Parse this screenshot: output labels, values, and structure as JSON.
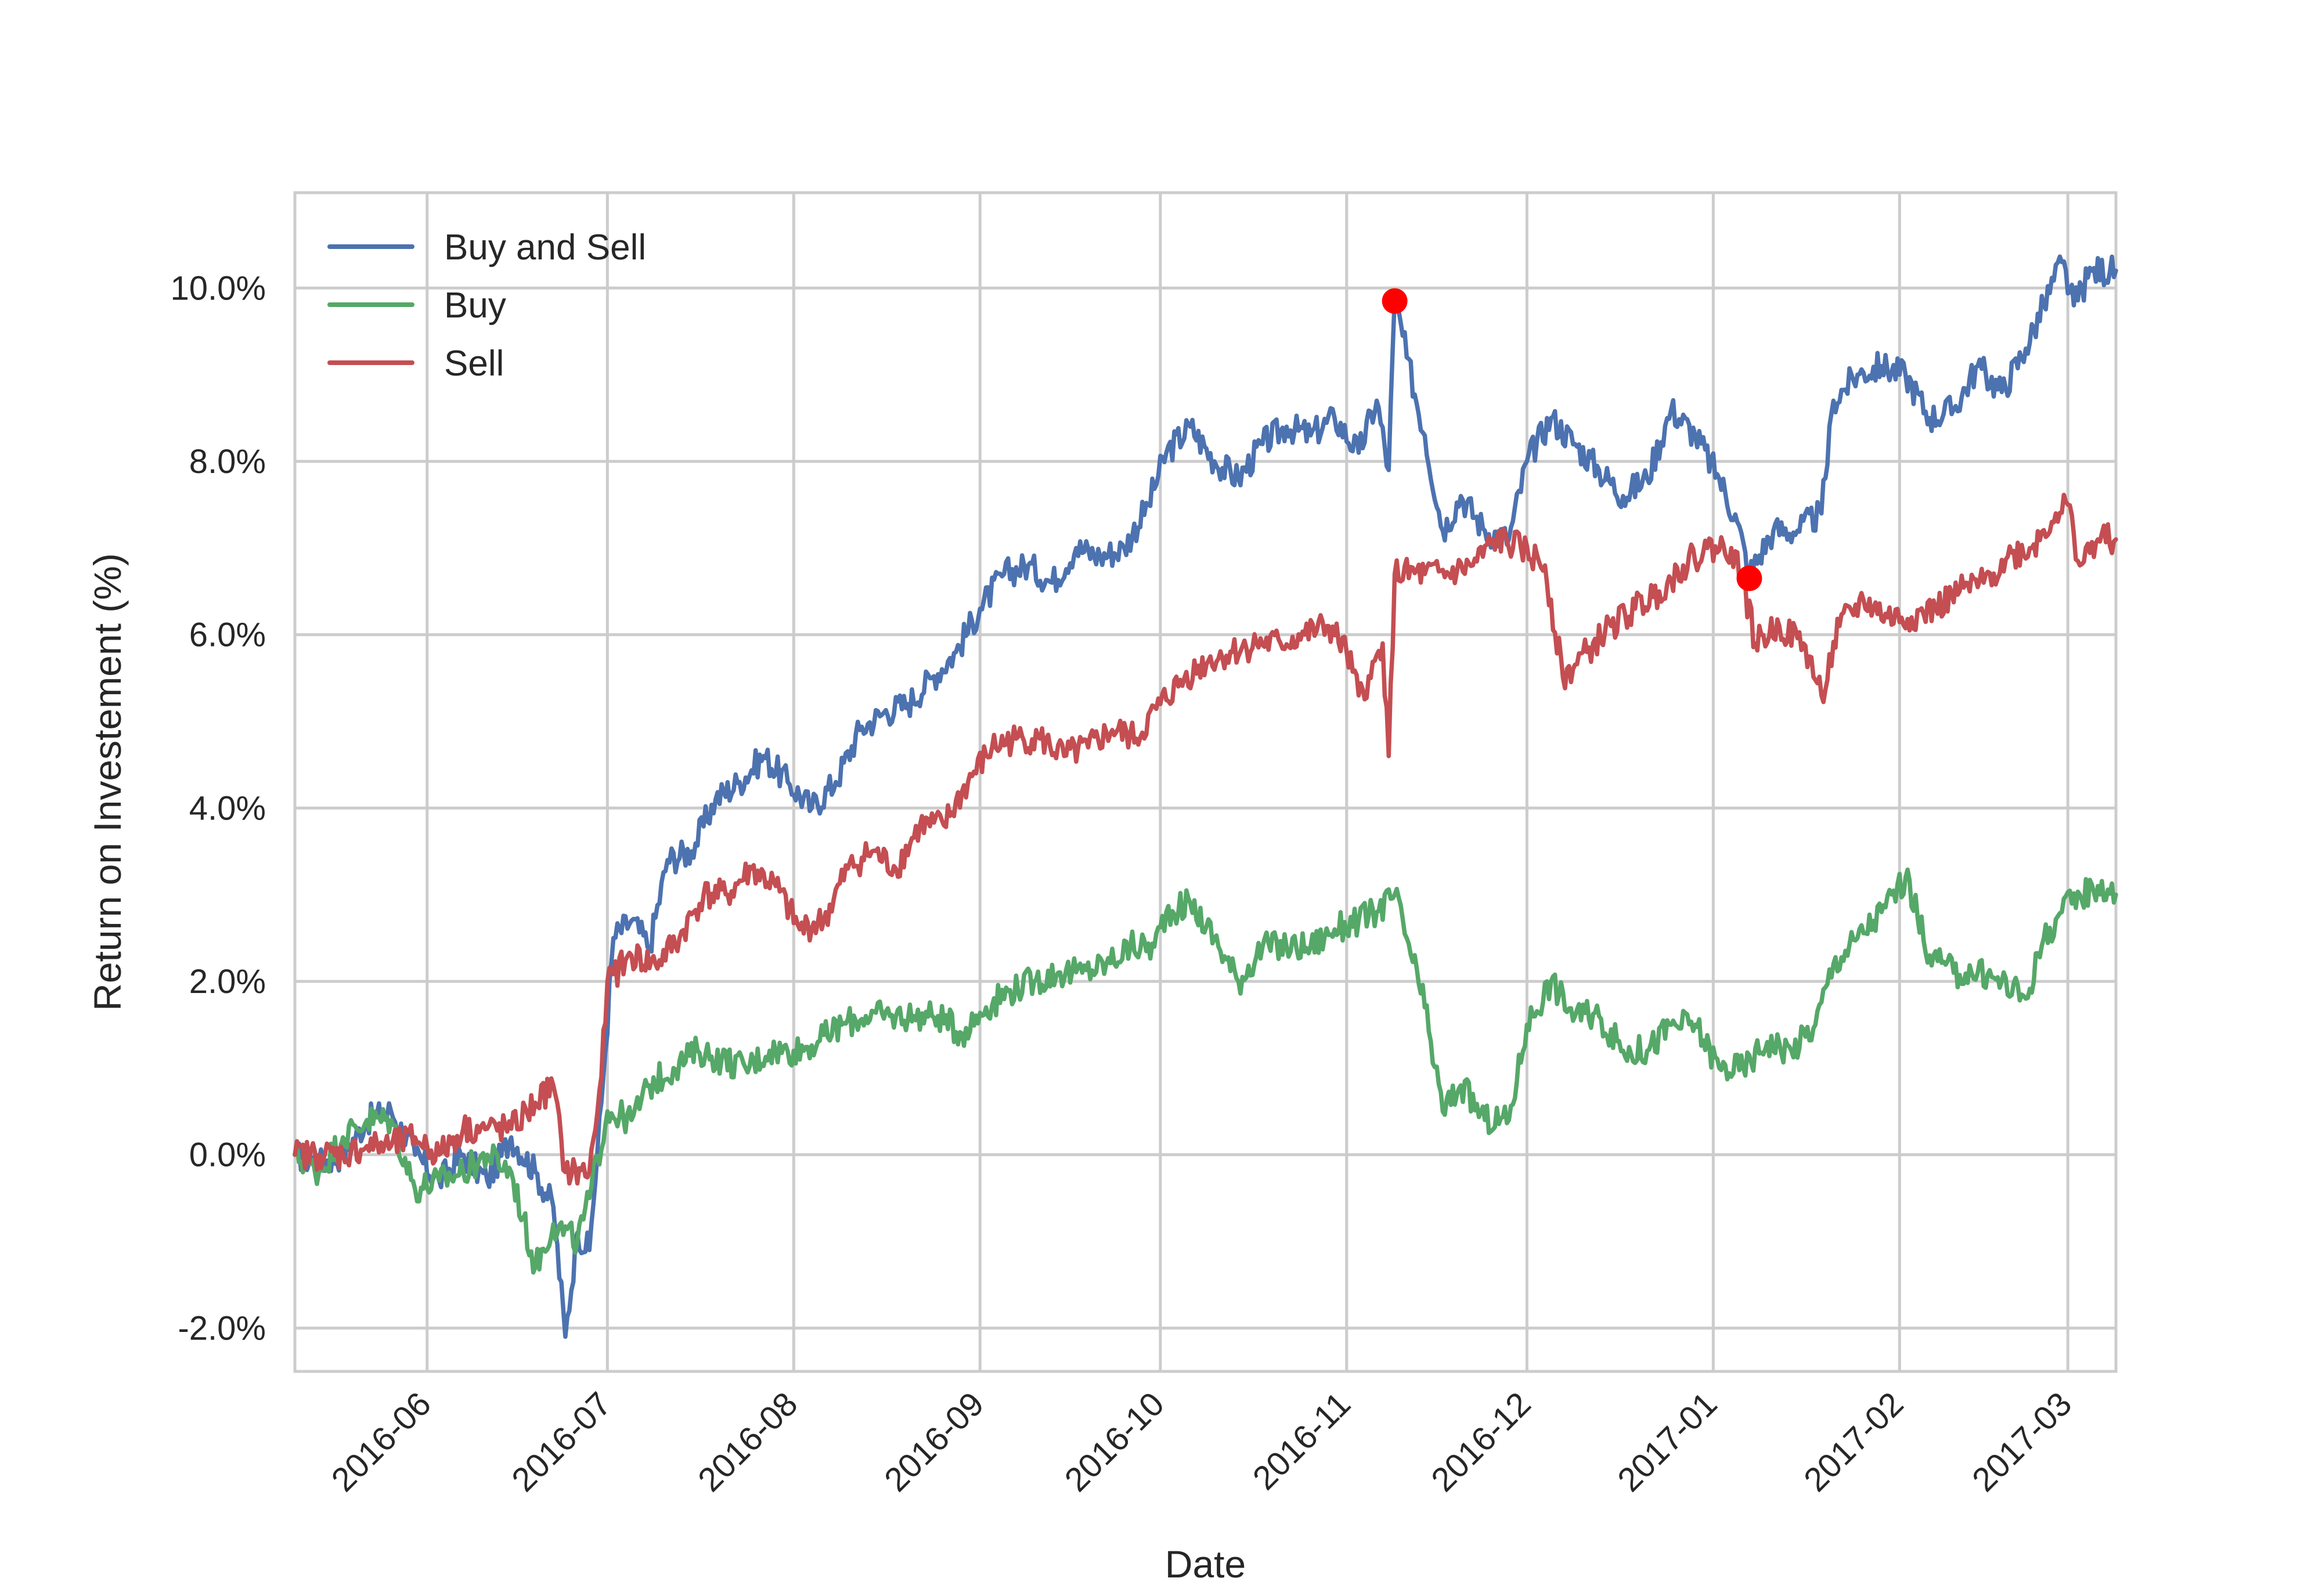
{
  "chart_data": {
    "type": "line",
    "xlabel": "Date",
    "ylabel": "Return on Investement (%)",
    "x_tick_labels": [
      "2016-06",
      "2016-07",
      "2016-08",
      "2016-09",
      "2016-10",
      "2016-11",
      "2016-12",
      "2017-01",
      "2017-02",
      "2017-03"
    ],
    "y_tick_labels": [
      "-2.0%",
      "0.0%",
      "2.0%",
      "4.0%",
      "6.0%",
      "8.0%",
      "10.0%"
    ],
    "y_ticks": [
      -2,
      0,
      2,
      4,
      6,
      8,
      10
    ],
    "ylim": [
      -2.5,
      11.1
    ],
    "xlim": [
      "2016-05-10",
      "2017-03-09"
    ],
    "grid": true,
    "legend_position": "upper-left",
    "series": [
      {
        "name": "Buy and Sell",
        "color": "#4c72b0",
        "points": [
          [
            "2016-05-10",
            0.0
          ],
          [
            "2016-05-14",
            -0.1
          ],
          [
            "2016-05-18",
            0.0
          ],
          [
            "2016-05-22",
            0.4
          ],
          [
            "2016-05-26",
            0.5
          ],
          [
            "2016-05-30",
            0.0
          ],
          [
            "2016-06-03",
            -0.3
          ],
          [
            "2016-06-07",
            0.0
          ],
          [
            "2016-06-11",
            -0.3
          ],
          [
            "2016-06-15",
            0.2
          ],
          [
            "2016-06-19",
            -0.2
          ],
          [
            "2016-06-22",
            -0.6
          ],
          [
            "2016-06-24",
            -2.1
          ],
          [
            "2016-06-26",
            -0.9
          ],
          [
            "2016-06-28",
            -1.1
          ],
          [
            "2016-06-30",
            0.6
          ],
          [
            "2016-07-02",
            2.5
          ],
          [
            "2016-07-05",
            2.7
          ],
          [
            "2016-07-08",
            2.4
          ],
          [
            "2016-07-11",
            3.4
          ],
          [
            "2016-07-15",
            3.5
          ],
          [
            "2016-07-19",
            4.1
          ],
          [
            "2016-07-23",
            4.3
          ],
          [
            "2016-07-27",
            4.6
          ],
          [
            "2016-07-31",
            4.3
          ],
          [
            "2016-08-04",
            4.0
          ],
          [
            "2016-08-08",
            4.3
          ],
          [
            "2016-08-12",
            4.9
          ],
          [
            "2016-08-16",
            5.1
          ],
          [
            "2016-08-20",
            5.2
          ],
          [
            "2016-08-24",
            5.5
          ],
          [
            "2016-08-28",
            5.8
          ],
          [
            "2016-09-01",
            6.3
          ],
          [
            "2016-09-05",
            6.7
          ],
          [
            "2016-09-09",
            6.8
          ],
          [
            "2016-09-13",
            6.6
          ],
          [
            "2016-09-17",
            7.0
          ],
          [
            "2016-09-21",
            6.9
          ],
          [
            "2016-09-25",
            7.0
          ],
          [
            "2016-09-29",
            7.5
          ],
          [
            "2016-10-02",
            8.1
          ],
          [
            "2016-10-06",
            8.4
          ],
          [
            "2016-10-10",
            8.0
          ],
          [
            "2016-10-14",
            7.8
          ],
          [
            "2016-10-18",
            8.2
          ],
          [
            "2016-10-22",
            8.4
          ],
          [
            "2016-10-26",
            8.3
          ],
          [
            "2016-10-30",
            8.5
          ],
          [
            "2016-11-03",
            8.1
          ],
          [
            "2016-11-06",
            8.7
          ],
          [
            "2016-11-08",
            7.9
          ],
          [
            "2016-11-09",
            9.9
          ],
          [
            "2016-11-11",
            9.2
          ],
          [
            "2016-11-14",
            8.3
          ],
          [
            "2016-11-17",
            7.2
          ],
          [
            "2016-11-20",
            7.6
          ],
          [
            "2016-11-24",
            7.2
          ],
          [
            "2016-11-28",
            7.1
          ],
          [
            "2016-12-01",
            8.0
          ],
          [
            "2016-12-05",
            8.5
          ],
          [
            "2016-12-09",
            8.2
          ],
          [
            "2016-12-13",
            7.9
          ],
          [
            "2016-12-17",
            7.6
          ],
          [
            "2016-12-21",
            7.8
          ],
          [
            "2016-12-25",
            8.6
          ],
          [
            "2016-12-29",
            8.3
          ],
          [
            "2017-01-02",
            7.8
          ],
          [
            "2017-01-05",
            7.3
          ],
          [
            "2017-01-07",
            6.7
          ],
          [
            "2017-01-11",
            7.2
          ],
          [
            "2017-01-15",
            7.2
          ],
          [
            "2017-01-19",
            7.4
          ],
          [
            "2017-01-21",
            8.7
          ],
          [
            "2017-01-25",
            9.0
          ],
          [
            "2017-01-29",
            9.1
          ],
          [
            "2017-02-02",
            9.0
          ],
          [
            "2017-02-06",
            8.5
          ],
          [
            "2017-02-10",
            8.6
          ],
          [
            "2017-02-14",
            9.1
          ],
          [
            "2017-02-18",
            8.8
          ],
          [
            "2017-02-22",
            9.3
          ],
          [
            "2017-02-25",
            9.8
          ],
          [
            "2017-02-28",
            10.3
          ],
          [
            "2017-03-02",
            9.8
          ],
          [
            "2017-03-05",
            10.2
          ],
          [
            "2017-03-09",
            10.2
          ]
        ]
      },
      {
        "name": "Buy",
        "color": "#55a868",
        "points": [
          [
            "2016-05-10",
            0.0
          ],
          [
            "2016-05-14",
            -0.2
          ],
          [
            "2016-05-18",
            0.2
          ],
          [
            "2016-05-22",
            0.4
          ],
          [
            "2016-05-26",
            0.4
          ],
          [
            "2016-05-30",
            -0.4
          ],
          [
            "2016-06-03",
            -0.3
          ],
          [
            "2016-06-07",
            -0.2
          ],
          [
            "2016-06-11",
            0.0
          ],
          [
            "2016-06-15",
            -0.2
          ],
          [
            "2016-06-19",
            -1.3
          ],
          [
            "2016-06-22",
            -0.8
          ],
          [
            "2016-06-26",
            -1.0
          ],
          [
            "2016-06-28",
            -0.5
          ],
          [
            "2016-07-01",
            0.5
          ],
          [
            "2016-07-05",
            0.4
          ],
          [
            "2016-07-08",
            0.8
          ],
          [
            "2016-07-12",
            1.0
          ],
          [
            "2016-07-16",
            1.2
          ],
          [
            "2016-07-20",
            1.1
          ],
          [
            "2016-07-24",
            1.0
          ],
          [
            "2016-07-28",
            1.2
          ],
          [
            "2016-08-01",
            1.2
          ],
          [
            "2016-08-05",
            1.3
          ],
          [
            "2016-08-09",
            1.5
          ],
          [
            "2016-08-13",
            1.6
          ],
          [
            "2016-08-17",
            1.6
          ],
          [
            "2016-08-21",
            1.6
          ],
          [
            "2016-08-25",
            1.6
          ],
          [
            "2016-08-29",
            1.4
          ],
          [
            "2016-09-02",
            1.7
          ],
          [
            "2016-09-06",
            1.9
          ],
          [
            "2016-09-10",
            2.0
          ],
          [
            "2016-09-14",
            2.1
          ],
          [
            "2016-09-18",
            2.1
          ],
          [
            "2016-09-22",
            2.2
          ],
          [
            "2016-09-26",
            2.4
          ],
          [
            "2016-09-30",
            2.4
          ],
          [
            "2016-10-02",
            2.8
          ],
          [
            "2016-10-06",
            2.9
          ],
          [
            "2016-10-10",
            2.5
          ],
          [
            "2016-10-14",
            2.0
          ],
          [
            "2016-10-18",
            2.4
          ],
          [
            "2016-10-22",
            2.4
          ],
          [
            "2016-10-26",
            2.4
          ],
          [
            "2016-10-30",
            2.6
          ],
          [
            "2016-11-03",
            2.7
          ],
          [
            "2016-11-06",
            2.8
          ],
          [
            "2016-11-09",
            3.0
          ],
          [
            "2016-11-11",
            2.5
          ],
          [
            "2016-11-14",
            1.7
          ],
          [
            "2016-11-17",
            0.5
          ],
          [
            "2016-11-20",
            0.8
          ],
          [
            "2016-11-24",
            0.4
          ],
          [
            "2016-11-28",
            0.4
          ],
          [
            "2016-12-01",
            1.5
          ],
          [
            "2016-12-05",
            2.0
          ],
          [
            "2016-12-09",
            1.6
          ],
          [
            "2016-12-13",
            1.6
          ],
          [
            "2016-12-17",
            1.2
          ],
          [
            "2016-12-21",
            1.2
          ],
          [
            "2016-12-25",
            1.5
          ],
          [
            "2016-12-29",
            1.5
          ],
          [
            "2017-01-02",
            1.0
          ],
          [
            "2017-01-06",
            1.0
          ],
          [
            "2017-01-10",
            1.3
          ],
          [
            "2017-01-14",
            1.2
          ],
          [
            "2017-01-18",
            1.5
          ],
          [
            "2017-01-21",
            2.2
          ],
          [
            "2017-01-25",
            2.5
          ],
          [
            "2017-01-29",
            2.8
          ],
          [
            "2017-02-02",
            3.2
          ],
          [
            "2017-02-06",
            2.3
          ],
          [
            "2017-02-10",
            2.1
          ],
          [
            "2017-02-14",
            2.1
          ],
          [
            "2017-02-18",
            2.0
          ],
          [
            "2017-02-22",
            1.8
          ],
          [
            "2017-02-25",
            2.5
          ],
          [
            "2017-02-28",
            2.8
          ],
          [
            "2017-03-03",
            3.0
          ],
          [
            "2017-03-06",
            3.1
          ],
          [
            "2017-03-09",
            3.0
          ]
        ]
      },
      {
        "name": "Sell",
        "color": "#c44e52",
        "points": [
          [
            "2016-05-10",
            0.0
          ],
          [
            "2016-05-14",
            0.0
          ],
          [
            "2016-05-18",
            0.0
          ],
          [
            "2016-05-22",
            0.1
          ],
          [
            "2016-05-26",
            0.1
          ],
          [
            "2016-05-30",
            0.2
          ],
          [
            "2016-06-03",
            0.0
          ],
          [
            "2016-06-07",
            0.3
          ],
          [
            "2016-06-11",
            0.3
          ],
          [
            "2016-06-15",
            0.3
          ],
          [
            "2016-06-19",
            0.6
          ],
          [
            "2016-06-22",
            0.8
          ],
          [
            "2016-06-24",
            -0.2
          ],
          [
            "2016-06-28",
            -0.2
          ],
          [
            "2016-06-30",
            0.9
          ],
          [
            "2016-07-01",
            2.0
          ],
          [
            "2016-07-05",
            2.3
          ],
          [
            "2016-07-09",
            2.2
          ],
          [
            "2016-07-13",
            2.5
          ],
          [
            "2016-07-17",
            3.0
          ],
          [
            "2016-07-21",
            3.0
          ],
          [
            "2016-07-25",
            3.3
          ],
          [
            "2016-07-29",
            3.1
          ],
          [
            "2016-08-02",
            2.6
          ],
          [
            "2016-08-06",
            2.7
          ],
          [
            "2016-08-10",
            3.3
          ],
          [
            "2016-08-14",
            3.5
          ],
          [
            "2016-08-18",
            3.3
          ],
          [
            "2016-08-22",
            3.8
          ],
          [
            "2016-08-26",
            3.8
          ],
          [
            "2016-08-30",
            4.3
          ],
          [
            "2016-09-03",
            4.7
          ],
          [
            "2016-09-07",
            4.8
          ],
          [
            "2016-09-11",
            4.8
          ],
          [
            "2016-09-15",
            4.6
          ],
          [
            "2016-09-19",
            4.7
          ],
          [
            "2016-09-23",
            4.9
          ],
          [
            "2016-09-27",
            4.8
          ],
          [
            "2016-10-01",
            5.2
          ],
          [
            "2016-10-05",
            5.5
          ],
          [
            "2016-10-09",
            5.7
          ],
          [
            "2016-10-13",
            5.8
          ],
          [
            "2016-10-17",
            5.9
          ],
          [
            "2016-10-21",
            5.9
          ],
          [
            "2016-10-25",
            6.0
          ],
          [
            "2016-10-29",
            6.1
          ],
          [
            "2016-11-01",
            5.8
          ],
          [
            "2016-11-03",
            5.3
          ],
          [
            "2016-11-05",
            5.5
          ],
          [
            "2016-11-07",
            5.9
          ],
          [
            "2016-11-08",
            4.6
          ],
          [
            "2016-11-09",
            6.7
          ],
          [
            "2016-11-14",
            6.7
          ],
          [
            "2016-11-18",
            6.7
          ],
          [
            "2016-11-22",
            6.8
          ],
          [
            "2016-11-26",
            7.1
          ],
          [
            "2016-11-30",
            7.0
          ],
          [
            "2016-12-04",
            6.8
          ],
          [
            "2016-12-07",
            5.5
          ],
          [
            "2016-12-11",
            5.8
          ],
          [
            "2016-12-15",
            6.1
          ],
          [
            "2016-12-19",
            6.3
          ],
          [
            "2016-12-23",
            6.5
          ],
          [
            "2016-12-27",
            6.8
          ],
          [
            "2016-12-31",
            7.0
          ],
          [
            "2017-01-04",
            7.0
          ],
          [
            "2017-01-06",
            6.6
          ],
          [
            "2017-01-08",
            5.9
          ],
          [
            "2017-01-12",
            6.1
          ],
          [
            "2017-01-16",
            5.9
          ],
          [
            "2017-01-19",
            5.3
          ],
          [
            "2017-01-22",
            6.1
          ],
          [
            "2017-01-26",
            6.4
          ],
          [
            "2017-01-30",
            6.2
          ],
          [
            "2017-02-03",
            6.2
          ],
          [
            "2017-02-07",
            6.3
          ],
          [
            "2017-02-11",
            6.5
          ],
          [
            "2017-02-15",
            6.6
          ],
          [
            "2017-02-19",
            6.9
          ],
          [
            "2017-02-23",
            7.0
          ],
          [
            "2017-02-27",
            7.4
          ],
          [
            "2017-03-01",
            7.5
          ],
          [
            "2017-03-03",
            6.8
          ],
          [
            "2017-03-06",
            7.1
          ],
          [
            "2017-03-09",
            7.1
          ]
        ]
      }
    ],
    "markers": [
      {
        "date": "2016-11-09",
        "value": 9.85,
        "color": "#ff0000"
      },
      {
        "date": "2017-01-07",
        "value": 6.65,
        "color": "#ff0000"
      }
    ]
  }
}
